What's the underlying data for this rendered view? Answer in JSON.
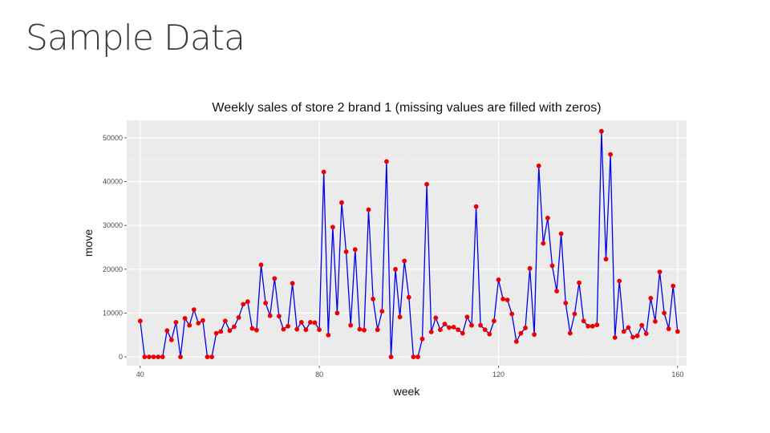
{
  "slide": {
    "title": "Sample Data"
  },
  "colors": {
    "panel": "#ebebeb",
    "grid_major": "#ffffff",
    "grid_minor": "#f4f4f4",
    "line": "#0000ee",
    "point": "#ee0000"
  },
  "chart_data": {
    "type": "line",
    "title": "Weekly sales of store 2 brand 1 (missing values are filled with zeros)",
    "xlabel": "week",
    "ylabel": "move",
    "xlim": [
      37,
      162
    ],
    "ylim": [
      -2000,
      54000
    ],
    "x_ticks": [
      40,
      80,
      120,
      160
    ],
    "x_tick_labels": [
      "40",
      "80",
      "120",
      "160"
    ],
    "y_ticks": [
      0,
      10000,
      20000,
      30000,
      40000,
      50000
    ],
    "y_tick_labels": [
      "0",
      "10000",
      "20000",
      "30000",
      "40000",
      "50000"
    ],
    "grid": true,
    "series": [
      {
        "name": "move",
        "x": [
          40,
          41,
          42,
          43,
          44,
          45,
          46,
          47,
          48,
          49,
          50,
          51,
          52,
          53,
          54,
          55,
          56,
          57,
          58,
          59,
          60,
          61,
          62,
          63,
          64,
          65,
          66,
          67,
          68,
          69,
          70,
          71,
          72,
          73,
          74,
          75,
          76,
          77,
          78,
          79,
          80,
          81,
          82,
          83,
          84,
          85,
          86,
          87,
          88,
          89,
          90,
          91,
          92,
          93,
          94,
          95,
          96,
          97,
          98,
          99,
          100,
          101,
          102,
          103,
          104,
          105,
          106,
          107,
          108,
          109,
          110,
          111,
          112,
          113,
          114,
          115,
          116,
          117,
          118,
          119,
          120,
          121,
          122,
          123,
          124,
          125,
          126,
          127,
          128,
          129,
          130,
          131,
          132,
          133,
          134,
          135,
          136,
          137,
          138,
          139,
          140,
          141,
          142,
          143,
          144,
          145,
          146,
          147,
          148,
          149,
          150,
          151,
          152,
          153,
          154,
          155,
          156,
          157,
          158,
          159,
          160
        ],
        "values": [
          8200,
          0,
          0,
          0,
          0,
          0,
          6000,
          3900,
          7900,
          0,
          8800,
          7200,
          10800,
          7700,
          8300,
          0,
          0,
          5400,
          5800,
          8200,
          6000,
          6900,
          9000,
          12000,
          12600,
          6500,
          6100,
          21000,
          12300,
          9400,
          17900,
          9300,
          6300,
          7000,
          16800,
          6300,
          7900,
          6200,
          7900,
          7800,
          6200,
          42200,
          5000,
          29600,
          10000,
          35200,
          24000,
          7200,
          24500,
          6300,
          6100,
          33600,
          13200,
          6200,
          10400,
          44600,
          0,
          20000,
          9100,
          21900,
          13600,
          0,
          0,
          4100,
          39400,
          5700,
          8900,
          6200,
          7500,
          6700,
          6800,
          6200,
          5400,
          9100,
          7200,
          34300,
          7200,
          6200,
          5200,
          8200,
          17600,
          13200,
          13000,
          9800,
          3500,
          5400,
          6600,
          20200,
          5100,
          43600,
          25900,
          31700,
          20800,
          15000,
          28100,
          12300,
          5400,
          9800,
          16900,
          8200,
          7000,
          7000,
          7300,
          51500,
          22300,
          46200,
          4400,
          17300,
          5800,
          6700,
          4500,
          4800,
          7200,
          5300,
          13400,
          8100,
          19400,
          10000,
          6400,
          16200,
          5800
        ]
      }
    ]
  }
}
